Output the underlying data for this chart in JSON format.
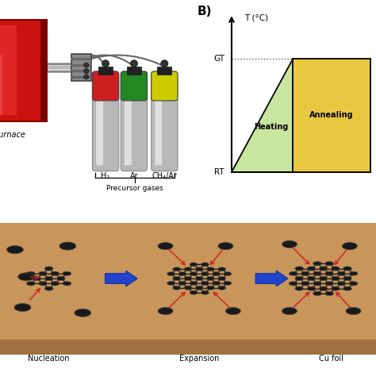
{
  "bg_color": "#ffffff",
  "title_b": "B)",
  "temp_label": "T (°C)",
  "gt_label": "GT",
  "rt_label": "RT",
  "heating_label": "Heating",
  "annealing_label": "Annealing",
  "heating_color": "#c8e6a0",
  "annealing_color": "#e8c840",
  "gas_labels": [
    "H₂",
    "Ar",
    "CH₄/Ar"
  ],
  "gas_colors": [
    "#cc2020",
    "#228822",
    "#cccc00"
  ],
  "precursor_label": "Precursor gases",
  "furnace_label": "Furnace",
  "nucleation_label": "Nucleation",
  "expansion_label": "Expansion",
  "cu_label": "Cu foil",
  "cu_color": "#c8955a",
  "cu_dark": "#a07040",
  "atom_color": "#1a1a1a",
  "arrow_color": "#2244cc",
  "red_arrow": "#cc2020"
}
